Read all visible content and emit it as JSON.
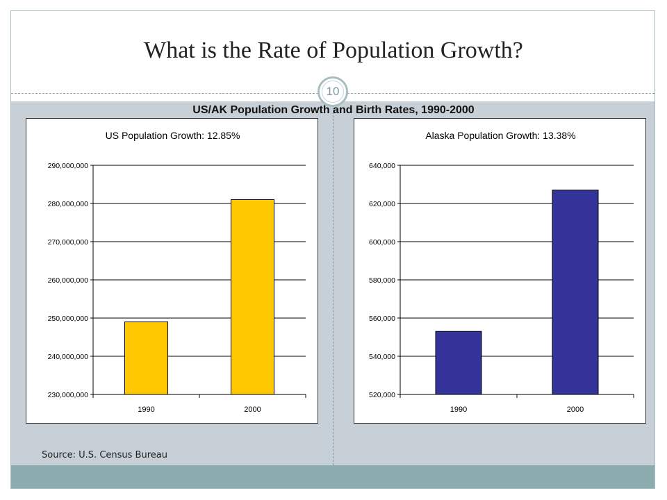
{
  "slide": {
    "title": "What is the Rate of Population Growth?",
    "page_number": "10",
    "source": "Source: U.S. Census Bureau"
  },
  "colors": {
    "us_bar": "#ffc800",
    "ak_bar": "#333399",
    "content_bg": "#c7d0d6",
    "footer": "#8badb0"
  },
  "chart_data": [
    {
      "type": "bar",
      "title": "US/AK Population Growth and Birth Rates, 1990-2000",
      "subtitle": "US  Population Growth: 12.85%",
      "categories": [
        "1990",
        "2000"
      ],
      "values": [
        249000000,
        281000000
      ],
      "ylim": [
        230000000,
        290000000
      ],
      "yticks": [
        230000000,
        240000000,
        250000000,
        260000000,
        270000000,
        280000000,
        290000000
      ],
      "ytick_labels": [
        "230,000,000",
        "240,000,000",
        "250,000,000",
        "260,000,000",
        "270,000,000",
        "280,000,000",
        "290,000,000"
      ],
      "grid": true,
      "legend": "none",
      "bar_color": "#ffc800"
    },
    {
      "type": "bar",
      "subtitle": "Alaska Population Growth: 13.38%",
      "categories": [
        "1990",
        "2000"
      ],
      "values": [
        553000,
        627000
      ],
      "ylim": [
        520000,
        640000
      ],
      "yticks": [
        520000,
        540000,
        560000,
        580000,
        600000,
        620000,
        640000
      ],
      "ytick_labels": [
        "520,000",
        "540,000",
        "560,000",
        "580,000",
        "600,000",
        "620,000",
        "640,000"
      ],
      "grid": true,
      "legend": "none",
      "bar_color": "#333399"
    }
  ]
}
